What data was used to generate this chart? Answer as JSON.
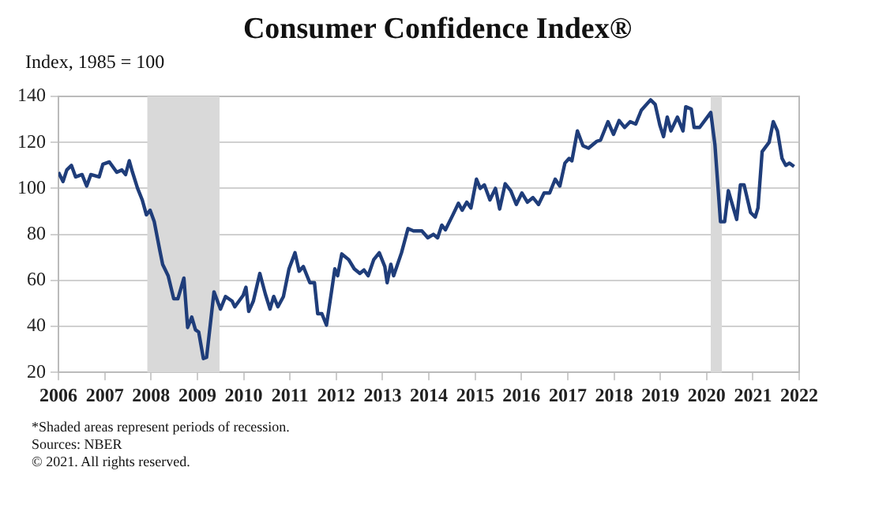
{
  "chart_data": {
    "type": "line",
    "title": "Consumer Confidence Index®",
    "ylabel": "Index, 1985 = 100",
    "x": [
      2006.0,
      2006.1,
      2006.18,
      2006.28,
      2006.37,
      2006.51,
      2006.61,
      2006.7,
      2006.88,
      2006.96,
      2007.1,
      2007.26,
      2007.37,
      2007.45,
      2007.53,
      2007.6,
      2007.71,
      2007.81,
      2007.9,
      2007.98,
      2008.07,
      2008.19,
      2008.25,
      2008.37,
      2008.49,
      2008.58,
      2008.71,
      2008.79,
      2008.88,
      2008.96,
      2009.03,
      2009.13,
      2009.2,
      2009.36,
      2009.5,
      2009.61,
      2009.75,
      2009.81,
      2009.99,
      2010.05,
      2010.11,
      2010.21,
      2010.35,
      2010.47,
      2010.57,
      2010.65,
      2010.74,
      2010.86,
      2010.98,
      2011.11,
      2011.2,
      2011.29,
      2011.43,
      2011.53,
      2011.6,
      2011.69,
      2011.79,
      2011.89,
      2011.97,
      2012.03,
      2012.12,
      2012.27,
      2012.39,
      2012.51,
      2012.6,
      2012.69,
      2012.81,
      2012.93,
      2013.05,
      2013.1,
      2013.18,
      2013.24,
      2013.41,
      2013.55,
      2013.67,
      2013.85,
      2013.98,
      2014.1,
      2014.19,
      2014.28,
      2014.36,
      2014.52,
      2014.64,
      2014.72,
      2014.82,
      2014.91,
      2015.03,
      2015.11,
      2015.2,
      2015.32,
      2015.44,
      2015.53,
      2015.65,
      2015.77,
      2015.89,
      2016.01,
      2016.13,
      2016.25,
      2016.37,
      2016.49,
      2016.61,
      2016.73,
      2016.83,
      2016.94,
      2017.03,
      2017.09,
      2017.21,
      2017.33,
      2017.45,
      2017.63,
      2017.71,
      2017.87,
      2017.99,
      2018.11,
      2018.23,
      2018.35,
      2018.47,
      2018.59,
      2018.79,
      2018.89,
      2018.99,
      2019.07,
      2019.15,
      2019.23,
      2019.37,
      2019.49,
      2019.55,
      2019.67,
      2019.73,
      2019.85,
      2020.09,
      2020.18,
      2020.3,
      2020.39,
      2020.47,
      2020.57,
      2020.65,
      2020.73,
      2020.81,
      2020.95,
      2021.05,
      2021.11,
      2021.2,
      2021.35,
      2021.44,
      2021.53,
      2021.63,
      2021.71,
      2021.79,
      2021.89
    ],
    "series": [
      {
        "color": "#1f3d7a",
        "values": [
          107,
          103,
          108,
          110,
          105,
          106,
          101,
          106,
          105,
          110.5,
          111.5,
          107,
          108,
          106,
          112,
          107,
          100,
          95,
          88.5,
          90.5,
          85.5,
          73,
          67,
          62,
          52,
          52,
          61,
          39.5,
          44,
          38.5,
          37.5,
          26,
          26.5,
          55,
          47.5,
          53,
          51,
          48.5,
          53.5,
          57,
          46.5,
          51,
          63,
          54,
          47.5,
          53,
          48.5,
          53,
          65,
          72,
          64,
          66,
          59,
          59,
          45.5,
          45.5,
          40.5,
          54,
          65,
          62,
          71.5,
          69,
          65,
          63,
          64.5,
          62,
          69,
          72,
          66,
          59,
          67,
          62,
          72,
          82.5,
          81.5,
          81.5,
          78.5,
          80,
          78.5,
          84,
          82,
          88.5,
          93.5,
          90.5,
          94,
          91.5,
          104,
          100,
          101.5,
          95,
          100,
          91,
          102,
          99,
          93,
          98,
          94,
          96,
          93,
          98,
          98,
          104,
          101,
          111,
          113,
          112,
          125,
          118.5,
          117.5,
          120.5,
          121,
          129,
          123.5,
          129.5,
          126.5,
          129,
          128,
          134,
          138.5,
          136.5,
          127.5,
          122.5,
          131,
          125,
          131,
          125,
          135.5,
          134.5,
          126.5,
          126.5,
          133,
          119,
          85.5,
          85.5,
          99,
          92,
          86.5,
          101.5,
          101.5,
          89.5,
          87.5,
          91.5,
          116,
          120,
          129,
          125,
          113,
          110,
          111,
          109.5
        ]
      }
    ],
    "xlim": [
      2006,
      2022
    ],
    "xticks": [
      2006,
      2007,
      2008,
      2009,
      2010,
      2011,
      2012,
      2013,
      2014,
      2015,
      2016,
      2017,
      2018,
      2019,
      2020,
      2021,
      2022
    ],
    "ylim": [
      20,
      140
    ],
    "yticks": [
      20,
      40,
      60,
      80,
      100,
      120,
      140
    ],
    "bands": [
      {
        "axis": "x",
        "from": 2007.92,
        "to": 2009.48,
        "color": "#d9d9d9"
      },
      {
        "axis": "x",
        "from": 2020.09,
        "to": 2020.33,
        "color": "#d9d9d9"
      }
    ],
    "grid": "y",
    "legend": false,
    "marker": "none",
    "line_style": "solid",
    "annotations": [
      "*Shaded areas represent periods of recession.",
      "Sources: NBER",
      "© 2021. All rights reserved."
    ]
  }
}
